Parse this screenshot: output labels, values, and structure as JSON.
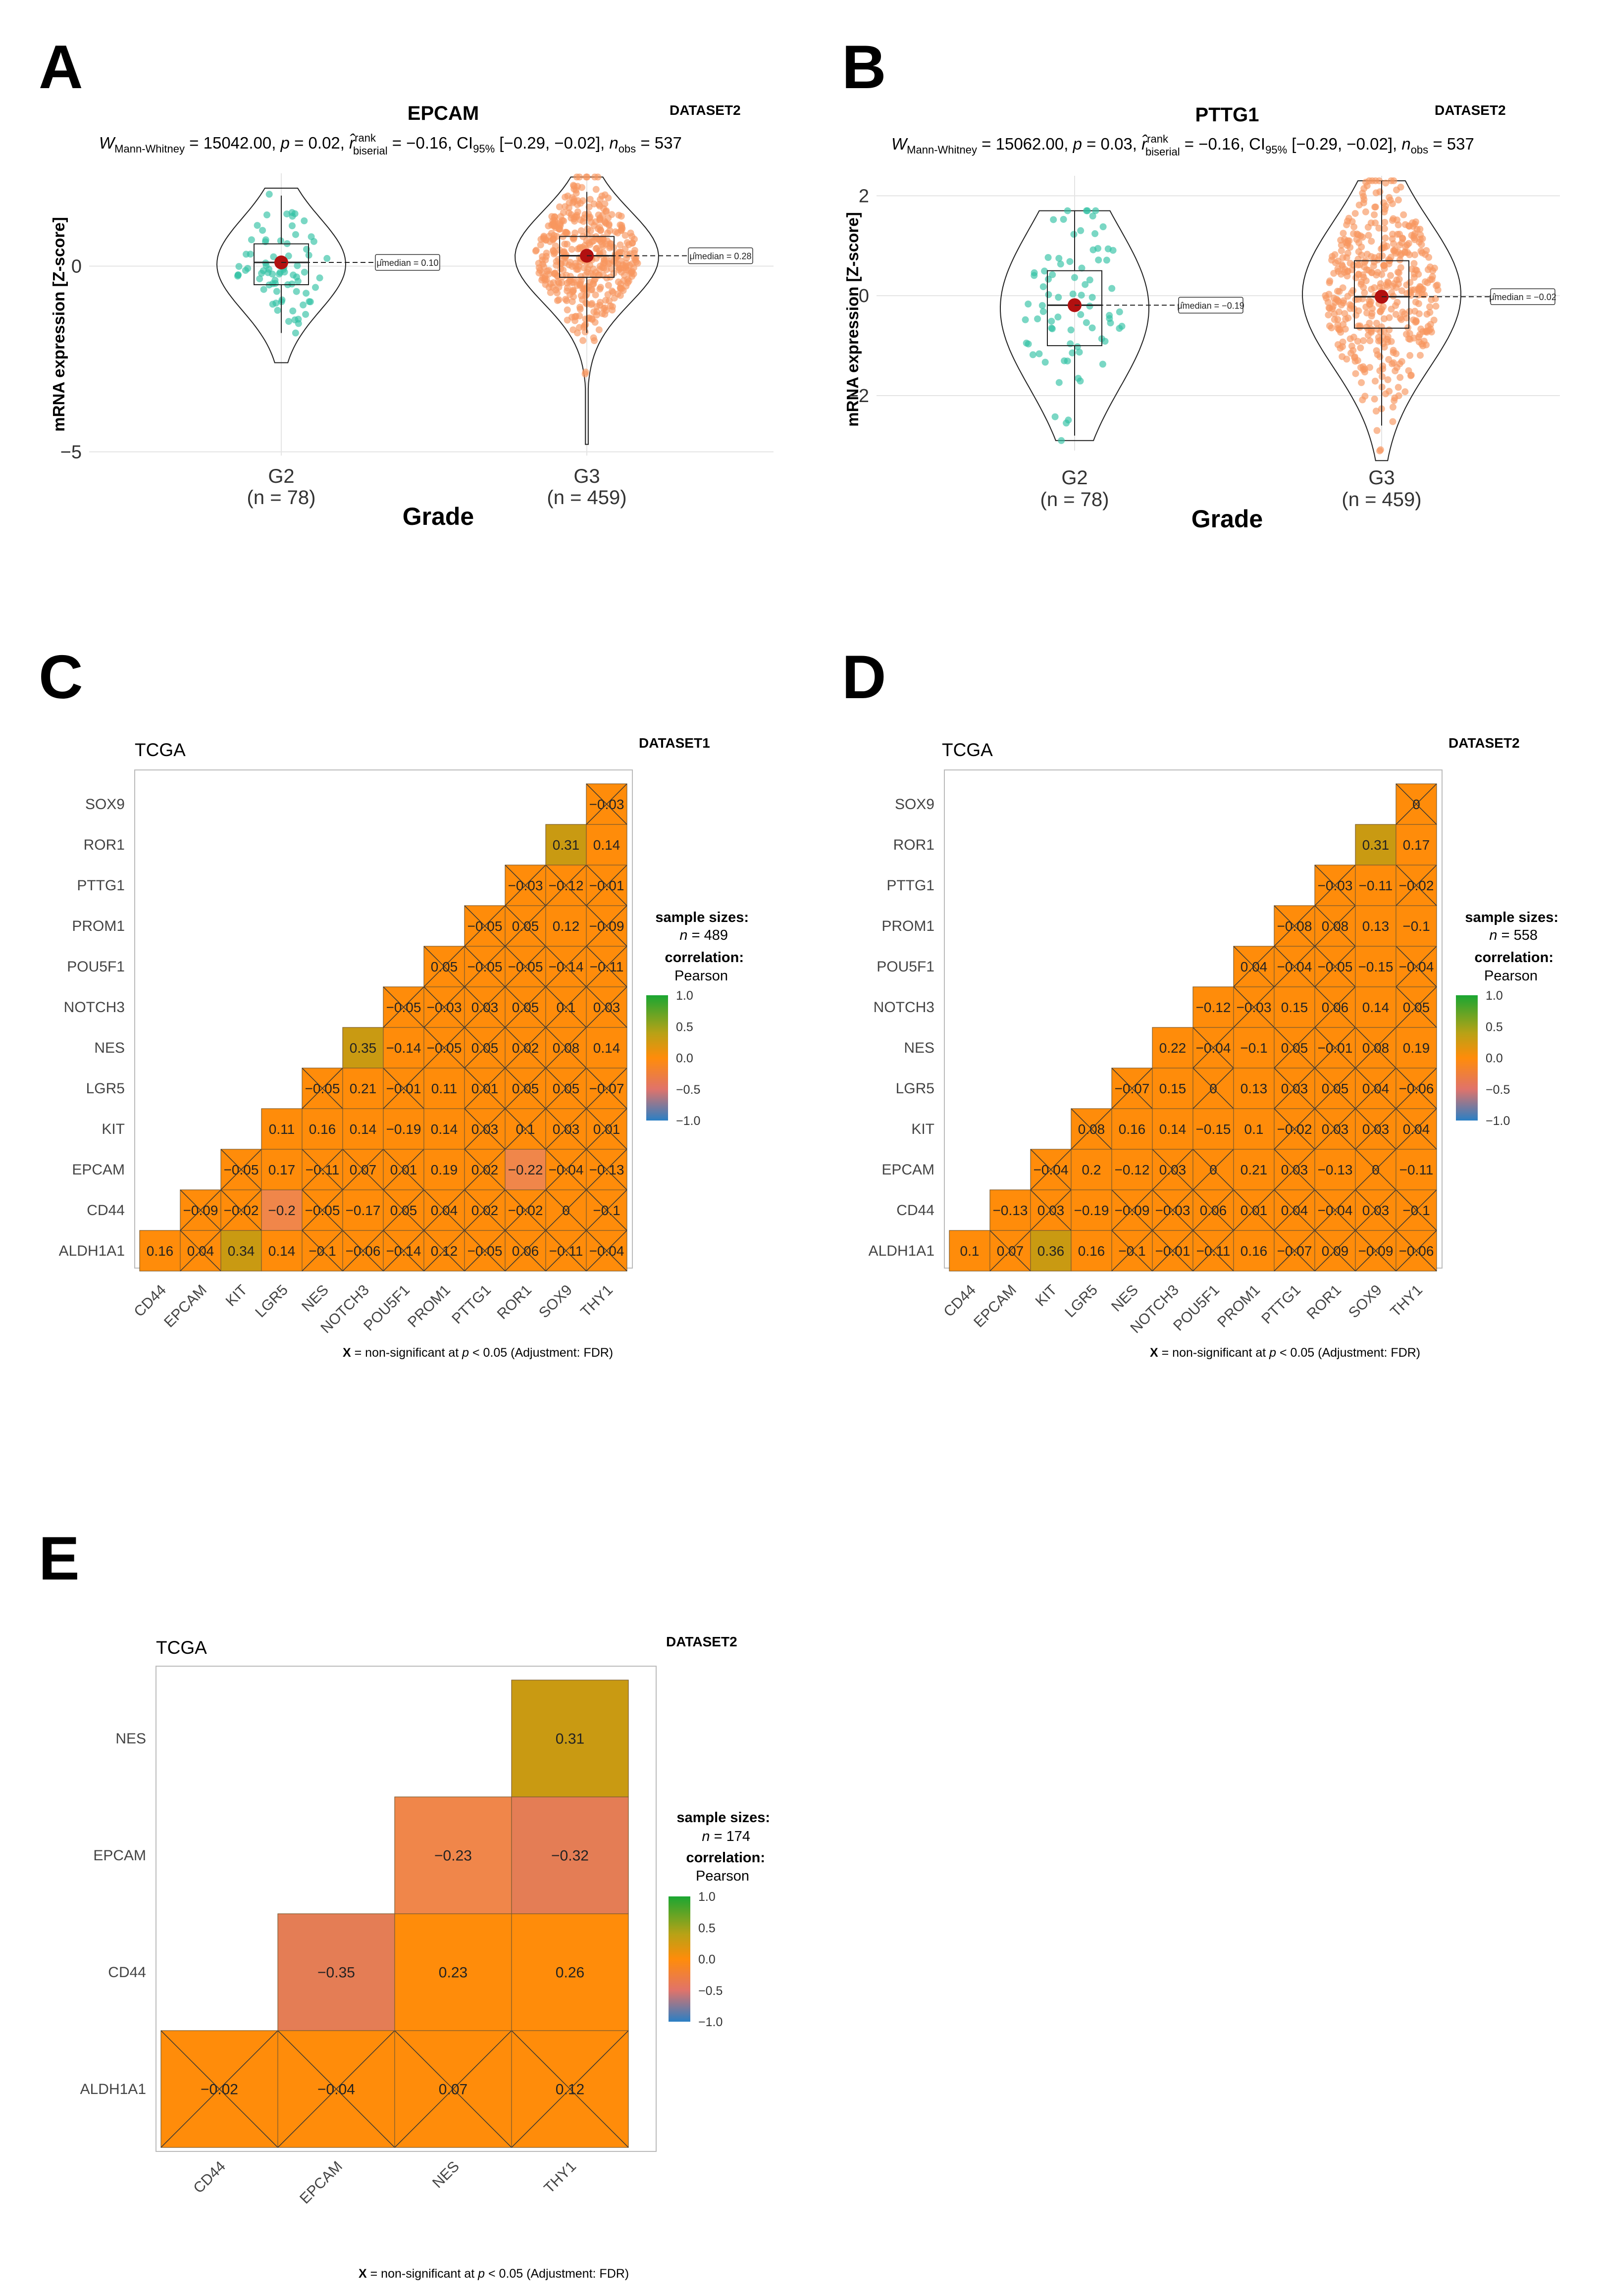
{
  "chart_data": [
    {
      "panel": "A",
      "type": "violin",
      "title": "EPCAM",
      "dataset": "DATASET2",
      "subtitle": {
        "w_sym": "W",
        "w_sub": "Mann-Whitney",
        "w_val": " = 15042.00, ",
        "p_sym": "p",
        "p_val": " = 0.02, ",
        "r_sym": "r̂",
        "r_sup": "rank",
        "r_sub": "biserial",
        "r_val": " = −0.16, CI",
        "ci_sub": "95%",
        "ci_val": " [−0.29, −0.02], ",
        "n_sym": "n",
        "n_sub": "obs",
        "n_val": " = 537"
      },
      "ylabel": "mRNA expression [Z-score]",
      "xlabel": "Grade",
      "yticks": [
        0,
        -5
      ],
      "ylim": [
        -5.1,
        2.5
      ],
      "categories": [
        {
          "label": "G2",
          "n_label": "(n = 78)",
          "n": 78,
          "median": 0.1,
          "mean": 0.1,
          "q1": -0.5,
          "q3": 0.6,
          "wlo": -1.8,
          "whi": 1.9,
          "min": -2.6,
          "max": 2.1,
          "median_label": "μ̂median = 0.10",
          "color": "#33c2a5"
        },
        {
          "label": "G3",
          "n_label": "(n = 459)",
          "n": 459,
          "median": 0.28,
          "mean": 0.28,
          "q1": -0.3,
          "q3": 0.8,
          "wlo": -1.8,
          "whi": 2.0,
          "min": -4.8,
          "max": 2.4,
          "median_label": "μ̂median = 0.28",
          "color": "#f79660"
        }
      ]
    },
    {
      "panel": "B",
      "type": "violin",
      "title": "PTTG1",
      "dataset": "DATASET2",
      "subtitle": {
        "w_sym": "W",
        "w_sub": "Mann-Whitney",
        "w_val": " = 15062.00, ",
        "p_sym": "p",
        "p_val": " = 0.03, ",
        "r_sym": "r̂",
        "r_sup": "rank",
        "r_sub": "biserial",
        "r_val": " = −0.16, CI",
        "ci_sub": "95%",
        "ci_val": " [−0.29, −0.02], ",
        "n_sym": "n",
        "n_sub": "obs",
        "n_val": " = 537"
      },
      "ylabel": "mRNA expression [Z-score]",
      "xlabel": "Grade",
      "yticks": [
        2,
        0,
        -2
      ],
      "ylim": [
        -3.1,
        2.4
      ],
      "categories": [
        {
          "label": "G2",
          "n_label": "(n = 78)",
          "n": 78,
          "median": -0.19,
          "mean": -0.19,
          "q1": -1.0,
          "q3": 0.5,
          "wlo": -2.8,
          "whi": 1.7,
          "min": -2.9,
          "max": 1.7,
          "median_label": "μ̂median = −0.19",
          "color": "#33c2a5"
        },
        {
          "label": "G3",
          "n_label": "(n = 459)",
          "n": 459,
          "median": -0.02,
          "mean": -0.02,
          "q1": -0.65,
          "q3": 0.7,
          "wlo": -2.6,
          "whi": 2.3,
          "min": -3.3,
          "max": 2.3,
          "median_label": "μ̂median = −0.02",
          "color": "#f79660"
        }
      ]
    },
    {
      "panel": "C",
      "type": "heatmap",
      "title": "TCGA",
      "dataset": "DATASET1",
      "genes": [
        "ALDH1A1",
        "CD44",
        "EPCAM",
        "KIT",
        "LGR5",
        "NES",
        "NOTCH3",
        "POU5F1",
        "PROM1",
        "PTTG1",
        "ROR1",
        "SOX9",
        "THY1"
      ],
      "values": [
        [
          "0.16",
          "0.04",
          "0.34",
          "0.14",
          "−0.1",
          "−0.06",
          "−0.14",
          "0.12",
          "−0.05",
          "0.06",
          "−0.11",
          "−0.04"
        ],
        [
          "−0.09",
          "−0.02",
          "−0.2",
          "−0.05",
          "−0.17",
          "0.05",
          "0.04",
          "0.02",
          "−0.02",
          "0",
          "−0.1"
        ],
        [
          "−0.05",
          "0.17",
          "−0.11",
          "0.07",
          "0.01",
          "0.19",
          "0.02",
          "−0.22",
          "−0.04",
          "−0.13"
        ],
        [
          "0.11",
          "0.16",
          "0.14",
          "−0.19",
          "0.14",
          "0.03",
          "0.1",
          "0.03",
          "0.01"
        ],
        [
          "−0.05",
          "0.21",
          "−0.01",
          "0.11",
          "0.01",
          "0.05",
          "0.05",
          "−0.07"
        ],
        [
          "0.35",
          "−0.14",
          "−0.05",
          "0.05",
          "0.02",
          "0.08",
          "0.14"
        ],
        [
          "−0.05",
          "−0.03",
          "0.03",
          "0.05",
          "0.1",
          "0.03"
        ],
        [
          "0.05",
          "−0.05",
          "−0.05",
          "−0.14",
          "−0.11"
        ],
        [
          "−0.05",
          "0.05",
          "0.12",
          "−0.09"
        ],
        [
          "−0.03",
          "−0.12",
          "−0.01"
        ],
        [
          "0.31",
          "0.14"
        ],
        [
          "−0.03"
        ]
      ],
      "significant": [
        [
          1,
          0,
          1,
          1,
          0,
          0,
          0,
          0,
          0,
          0,
          0,
          0
        ],
        [
          0,
          0,
          1,
          0,
          1,
          0,
          0,
          0,
          0,
          0,
          0
        ],
        [
          0,
          1,
          0,
          0,
          0,
          1,
          0,
          1,
          0,
          0
        ],
        [
          1,
          1,
          1,
          1,
          1,
          0,
          0,
          0,
          0
        ],
        [
          0,
          1,
          0,
          1,
          0,
          0,
          0,
          0
        ],
        [
          1,
          1,
          0,
          0,
          0,
          0,
          1
        ],
        [
          0,
          0,
          0,
          0,
          0,
          0
        ],
        [
          0,
          0,
          0,
          0,
          0
        ],
        [
          0,
          0,
          1,
          0
        ],
        [
          0,
          0,
          0
        ],
        [
          1,
          1
        ],
        [
          0
        ]
      ],
      "legend": {
        "title1": "sample sizes:",
        "n_sym": "n",
        "n_val": " = 489",
        "title2": "correlation:",
        "method": "Pearson",
        "ticks": [
          "1.0",
          "0.5",
          "0.0",
          "−0.5",
          "−1.0"
        ]
      },
      "footnote": {
        "x": "X",
        "text1": " = non-significant at ",
        "p": "p",
        "text2": " < 0.05 (Adjustment: FDR)"
      }
    },
    {
      "panel": "D",
      "type": "heatmap",
      "title": "TCGA",
      "dataset": "DATASET2",
      "genes": [
        "ALDH1A1",
        "CD44",
        "EPCAM",
        "KIT",
        "LGR5",
        "NES",
        "NOTCH3",
        "POU5F1",
        "PROM1",
        "PTTG1",
        "ROR1",
        "SOX9",
        "THY1"
      ],
      "values": [
        [
          "0.1",
          "0.07",
          "0.36",
          "0.16",
          "−0.1",
          "−0.01",
          "−0.11",
          "0.16",
          "−0.07",
          "0.09",
          "−0.09",
          "−0.06"
        ],
        [
          "−0.13",
          "0.03",
          "−0.19",
          "−0.09",
          "−0.03",
          "0.06",
          "0.01",
          "0.04",
          "−0.04",
          "0.03",
          "−0.1"
        ],
        [
          "−0.04",
          "0.2",
          "−0.12",
          "0.03",
          "0",
          "0.21",
          "0.03",
          "−0.13",
          "0",
          "−0.11"
        ],
        [
          "0.08",
          "0.16",
          "0.14",
          "−0.15",
          "0.1",
          "−0.02",
          "0.03",
          "0.03",
          "0.04"
        ],
        [
          "−0.07",
          "0.15",
          "0",
          "0.13",
          "0.03",
          "0.05",
          "0.04",
          "−0.06"
        ],
        [
          "0.22",
          "−0.04",
          "−0.1",
          "0.05",
          "−0.01",
          "0.08",
          "0.19"
        ],
        [
          "−0.12",
          "−0.03",
          "0.15",
          "0.06",
          "0.14",
          "0.05"
        ],
        [
          "0.04",
          "−0.04",
          "−0.05",
          "−0.15",
          "−0.04"
        ],
        [
          "−0.08",
          "0.08",
          "0.13",
          "−0.1"
        ],
        [
          "−0.03",
          "−0.11",
          "−0.02"
        ],
        [
          "0.31",
          "0.17"
        ],
        [
          "0"
        ]
      ],
      "significant": [
        [
          1,
          0,
          1,
          1,
          0,
          0,
          0,
          1,
          0,
          0,
          0,
          0
        ],
        [
          1,
          0,
          1,
          0,
          0,
          0,
          0,
          0,
          0,
          0,
          0
        ],
        [
          0,
          1,
          1,
          0,
          0,
          1,
          0,
          1,
          0,
          1
        ],
        [
          0,
          1,
          1,
          1,
          1,
          0,
          0,
          0,
          0
        ],
        [
          0,
          1,
          0,
          1,
          0,
          0,
          0,
          0
        ],
        [
          1,
          0,
          1,
          0,
          0,
          0,
          1
        ],
        [
          1,
          0,
          1,
          0,
          1,
          0
        ],
        [
          0,
          0,
          0,
          1,
          0
        ],
        [
          0,
          0,
          1,
          1
        ],
        [
          0,
          1,
          0
        ],
        [
          1,
          1
        ],
        [
          0
        ]
      ],
      "legend": {
        "title1": "sample sizes:",
        "n_sym": "n",
        "n_val": " = 558",
        "title2": "correlation:",
        "method": "Pearson",
        "ticks": [
          "1.0",
          "0.5",
          "0.0",
          "−0.5",
          "−1.0"
        ]
      },
      "footnote": {
        "x": "X",
        "text1": " = non-significant at ",
        "p": "p",
        "text2": " < 0.05 (Adjustment: FDR)"
      }
    },
    {
      "panel": "E",
      "type": "heatmap",
      "title": "TCGA",
      "dataset": "DATASET2",
      "genes": [
        "ALDH1A1",
        "CD44",
        "EPCAM",
        "NES",
        "THY1"
      ],
      "values": [
        [
          "−0.02",
          "−0.04",
          "0.07",
          "0.12"
        ],
        [
          "−0.35",
          "0.23",
          "0.26"
        ],
        [
          "−0.23",
          "−0.32"
        ],
        [
          "0.31"
        ]
      ],
      "significant": [
        [
          0,
          0,
          0,
          0
        ],
        [
          1,
          1,
          1
        ],
        [
          1,
          1
        ],
        [
          1
        ]
      ],
      "legend": {
        "title1": "sample sizes:",
        "n_sym": "n",
        "n_val": " = 174",
        "title2": "correlation:",
        "method": "Pearson",
        "ticks": [
          "1.0",
          "0.5",
          "0.0",
          "−0.5",
          "−1.0"
        ]
      },
      "footnote": {
        "x": "X",
        "text1": " = non-significant at ",
        "p": "p",
        "text2": " < 0.05 (Adjustment: FDR)"
      }
    }
  ],
  "colors": {
    "orange": "#FF8C0A",
    "olive": "#C99A12",
    "coral": "#F0864A",
    "salmon": "#E47D55",
    "g2": "#33c2a5",
    "g3": "#f79660",
    "dot": "#b21010"
  }
}
